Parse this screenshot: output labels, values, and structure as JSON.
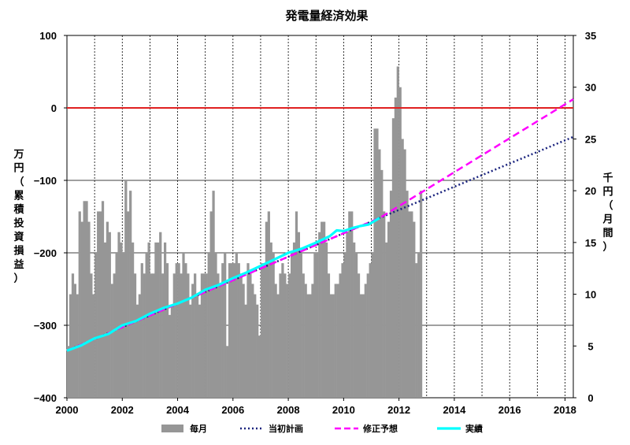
{
  "chart_data": {
    "type": "bar+line",
    "title": "発電量経済効果",
    "x_axis": {
      "range": [
        2000,
        2018.3
      ],
      "tick_values": [
        2000,
        2002,
        2004,
        2006,
        2008,
        2010,
        2012,
        2014,
        2016,
        2018
      ],
      "tick_labels": [
        "2000",
        "2002",
        "2004",
        "2006",
        "2008",
        "2010",
        "2012",
        "2014",
        "2016",
        "2018"
      ],
      "gridlines": "vertical dashed, yearly"
    },
    "y_left": {
      "label_chars": [
        "万",
        "円",
        "（",
        "累",
        "積",
        "投",
        "資",
        "損",
        "益",
        "）"
      ],
      "range": [
        -400,
        100
      ],
      "tick_values": [
        100,
        0,
        -100,
        -200,
        -300,
        -400
      ],
      "tick_labels": [
        "100",
        "0",
        "−100",
        "−200",
        "−300",
        "−400"
      ]
    },
    "y_right": {
      "label_chars": [
        "千",
        "円",
        "（",
        "月",
        "間",
        "）"
      ],
      "range": [
        0,
        35
      ],
      "tick_values": [
        0,
        5,
        10,
        15,
        20,
        25,
        30,
        35
      ],
      "tick_labels": [
        "0",
        "5",
        "10",
        "15",
        "20",
        "25",
        "30",
        "35"
      ]
    },
    "zero_line": {
      "y": 0,
      "color": "#e02020"
    },
    "series": [
      {
        "name": "毎月",
        "kind": "bar",
        "axis": "right",
        "color": "#969696",
        "x_start": 2000.0,
        "x_step": 0.08333,
        "values": [
          5,
          10,
          12,
          11,
          10,
          18,
          17,
          19,
          19,
          17,
          12,
          10,
          14,
          18,
          18,
          19,
          15,
          17,
          16,
          11,
          12,
          14,
          16,
          15,
          14,
          21,
          18,
          20,
          15,
          12,
          9,
          10,
          13,
          12,
          14,
          15,
          12,
          12,
          15,
          15,
          16,
          12,
          15,
          13,
          8,
          9,
          12,
          13,
          13,
          12,
          14,
          13,
          12,
          9,
          11,
          12,
          10,
          9,
          12,
          12,
          12,
          14,
          18,
          20,
          14,
          12,
          11,
          13,
          14,
          5,
          13,
          13,
          13,
          14,
          13,
          12,
          11,
          9,
          13,
          12,
          11,
          10,
          9,
          6,
          13,
          13,
          17,
          18,
          15,
          14,
          11,
          10,
          12,
          13,
          12,
          11,
          12,
          14,
          15,
          18,
          16,
          14,
          12,
          11,
          10,
          10,
          11,
          14,
          14,
          16,
          17,
          17,
          15,
          12,
          10,
          10,
          11,
          11,
          12,
          13,
          14,
          16,
          18,
          18,
          15,
          14,
          12,
          10,
          10,
          11,
          12,
          13,
          14,
          26,
          26,
          24,
          22,
          18,
          15,
          17,
          20,
          27,
          29,
          32,
          30,
          25,
          24,
          20,
          18,
          18,
          17,
          13,
          14,
          20
        ]
      },
      {
        "name": "当初計画",
        "kind": "line",
        "style": "dotted",
        "axis": "left",
        "color": "#1a237e",
        "points": [
          [
            2000,
            -335
          ],
          [
            2011.3,
            -152
          ],
          [
            2018.3,
            -40
          ]
        ]
      },
      {
        "name": "修正予想",
        "kind": "line",
        "style": "dashed",
        "axis": "left",
        "color": "#ff00ff",
        "points": [
          [
            2000,
            -335
          ],
          [
            2011.3,
            -152
          ],
          [
            2018.3,
            12
          ]
        ]
      },
      {
        "name": "実績",
        "kind": "line",
        "style": "solid",
        "axis": "left",
        "color": "#00ffff",
        "points": [
          [
            2000,
            -335
          ],
          [
            2000.5,
            -328
          ],
          [
            2001,
            -318
          ],
          [
            2001.5,
            -312
          ],
          [
            2002,
            -300
          ],
          [
            2002.5,
            -294
          ],
          [
            2003,
            -284
          ],
          [
            2003.5,
            -276
          ],
          [
            2004,
            -270
          ],
          [
            2004.5,
            -262
          ],
          [
            2005,
            -251
          ],
          [
            2005.5,
            -244
          ],
          [
            2006,
            -235
          ],
          [
            2006.5,
            -227
          ],
          [
            2007,
            -218
          ],
          [
            2007.5,
            -209
          ],
          [
            2008,
            -200
          ],
          [
            2008.5,
            -194
          ],
          [
            2009,
            -186
          ],
          [
            2009.5,
            -177
          ],
          [
            2009.75,
            -169
          ],
          [
            2010,
            -170
          ],
          [
            2010.3,
            -166
          ],
          [
            2010.6,
            -163
          ],
          [
            2010.9,
            -161
          ],
          [
            2011.3,
            -152
          ]
        ]
      }
    ],
    "legend": {
      "placement": "bottom",
      "items": [
        {
          "name": "毎月",
          "symbol": "bar",
          "color": "#969696"
        },
        {
          "name": "当初計画",
          "symbol": "dotted",
          "color": "#1a237e"
        },
        {
          "name": "修正予想",
          "symbol": "dashed",
          "color": "#ff00ff"
        },
        {
          "name": "実績",
          "symbol": "solid",
          "color": "#00ffff"
        }
      ]
    }
  }
}
